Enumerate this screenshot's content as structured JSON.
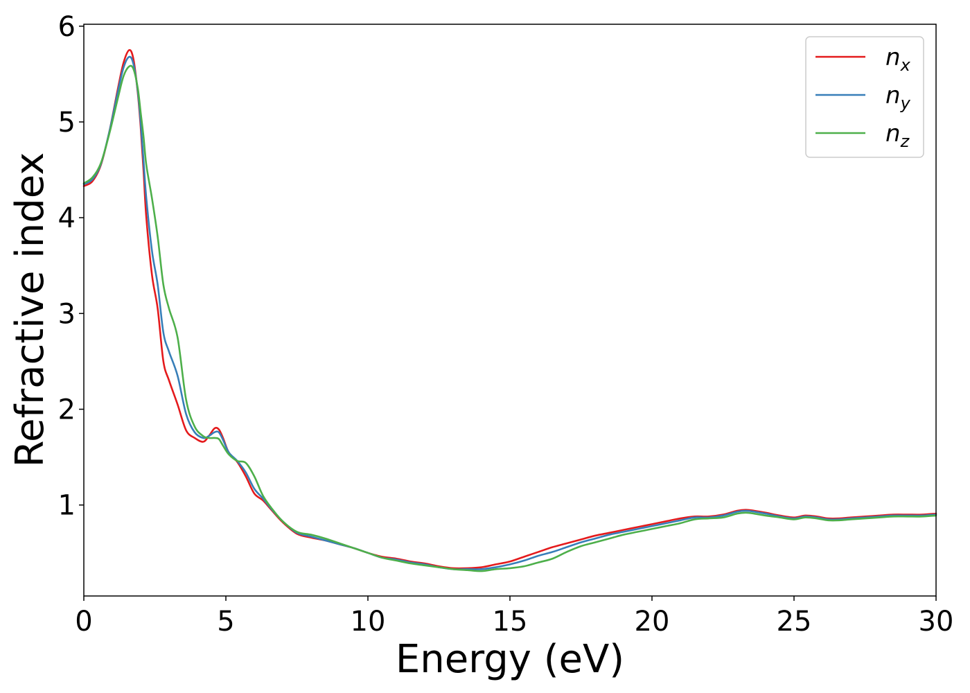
{
  "chart_data": {
    "type": "line",
    "xlabel": "Energy (eV)",
    "ylabel": "Refractive index",
    "xlim": [
      0,
      30
    ],
    "ylim": [
      0.05,
      6.02
    ],
    "xticks": [
      0,
      5,
      10,
      15,
      20,
      25,
      30
    ],
    "yticks": [
      1,
      2,
      3,
      4,
      5,
      6
    ],
    "grid": false,
    "legend_position": "top-right",
    "series": [
      {
        "name": "n",
        "subscript": "x",
        "color": "#e41a1c",
        "x": [
          0,
          0.3,
          0.6,
          0.9,
          1.2,
          1.4,
          1.6,
          1.75,
          1.9,
          2.0,
          2.1,
          2.2,
          2.4,
          2.6,
          2.8,
          3.0,
          3.3,
          3.6,
          3.9,
          4.2,
          4.4,
          4.6,
          4.75,
          4.9,
          5.1,
          5.4,
          5.7,
          6.0,
          6.3,
          6.6,
          7.0,
          7.5,
          8.0,
          8.5,
          9.0,
          9.5,
          10.0,
          10.5,
          11.0,
          11.5,
          12.0,
          12.5,
          13.0,
          13.5,
          14.0,
          14.5,
          15.0,
          15.5,
          16.0,
          16.5,
          17.0,
          17.5,
          18.0,
          18.5,
          19.0,
          19.5,
          20.0,
          20.5,
          21.0,
          21.5,
          22.0,
          22.5,
          23.0,
          23.3,
          23.6,
          24.0,
          24.5,
          25.0,
          25.4,
          25.8,
          26.2,
          26.6,
          27.0,
          27.5,
          28.0,
          28.5,
          29.0,
          29.5,
          30.0
        ],
        "y": [
          4.33,
          4.38,
          4.55,
          4.9,
          5.35,
          5.62,
          5.75,
          5.65,
          5.3,
          4.95,
          4.5,
          4.0,
          3.4,
          3.05,
          2.5,
          2.3,
          2.05,
          1.78,
          1.7,
          1.66,
          1.72,
          1.8,
          1.79,
          1.7,
          1.55,
          1.45,
          1.3,
          1.12,
          1.05,
          0.95,
          0.82,
          0.7,
          0.66,
          0.63,
          0.59,
          0.55,
          0.5,
          0.46,
          0.44,
          0.41,
          0.39,
          0.36,
          0.34,
          0.34,
          0.35,
          0.38,
          0.41,
          0.46,
          0.51,
          0.56,
          0.6,
          0.64,
          0.68,
          0.71,
          0.74,
          0.77,
          0.8,
          0.83,
          0.86,
          0.88,
          0.88,
          0.9,
          0.94,
          0.95,
          0.94,
          0.92,
          0.89,
          0.87,
          0.89,
          0.88,
          0.86,
          0.86,
          0.87,
          0.88,
          0.89,
          0.9,
          0.9,
          0.9,
          0.91
        ]
      },
      {
        "name": "n",
        "subscript": "y",
        "color": "#377eb8",
        "x": [
          0,
          0.3,
          0.6,
          0.9,
          1.2,
          1.4,
          1.6,
          1.75,
          1.9,
          2.0,
          2.1,
          2.2,
          2.4,
          2.6,
          2.8,
          3.0,
          3.3,
          3.6,
          3.9,
          4.2,
          4.4,
          4.6,
          4.75,
          4.9,
          5.1,
          5.4,
          5.7,
          6.0,
          6.3,
          6.6,
          7.0,
          7.5,
          8.0,
          8.5,
          9.0,
          9.5,
          10.0,
          10.5,
          11.0,
          11.5,
          12.0,
          12.5,
          13.0,
          13.5,
          14.0,
          14.5,
          15.0,
          15.5,
          16.0,
          16.5,
          17.0,
          17.5,
          18.0,
          18.5,
          19.0,
          19.5,
          20.0,
          20.5,
          21.0,
          21.5,
          22.0,
          22.5,
          23.0,
          23.3,
          23.6,
          24.0,
          24.5,
          25.0,
          25.4,
          25.8,
          26.2,
          26.6,
          27.0,
          27.5,
          28.0,
          28.5,
          29.0,
          29.5,
          30.0
        ],
        "y": [
          4.35,
          4.4,
          4.56,
          4.9,
          5.32,
          5.57,
          5.68,
          5.6,
          5.32,
          5.0,
          4.6,
          4.2,
          3.65,
          3.3,
          2.8,
          2.6,
          2.35,
          1.95,
          1.76,
          1.7,
          1.72,
          1.76,
          1.76,
          1.68,
          1.55,
          1.46,
          1.34,
          1.17,
          1.07,
          0.96,
          0.83,
          0.71,
          0.67,
          0.63,
          0.59,
          0.55,
          0.5,
          0.45,
          0.43,
          0.4,
          0.38,
          0.35,
          0.33,
          0.33,
          0.33,
          0.35,
          0.38,
          0.42,
          0.47,
          0.51,
          0.56,
          0.61,
          0.65,
          0.69,
          0.72,
          0.75,
          0.78,
          0.81,
          0.84,
          0.87,
          0.87,
          0.89,
          0.93,
          0.94,
          0.93,
          0.91,
          0.88,
          0.86,
          0.88,
          0.87,
          0.85,
          0.85,
          0.86,
          0.87,
          0.88,
          0.89,
          0.89,
          0.89,
          0.9
        ]
      },
      {
        "name": "n",
        "subscript": "z",
        "color": "#4daf4a",
        "x": [
          0,
          0.3,
          0.6,
          0.9,
          1.2,
          1.4,
          1.6,
          1.75,
          1.9,
          2.0,
          2.1,
          2.2,
          2.4,
          2.6,
          2.8,
          3.0,
          3.3,
          3.6,
          3.9,
          4.2,
          4.4,
          4.6,
          4.75,
          4.9,
          5.1,
          5.4,
          5.7,
          6.0,
          6.3,
          6.6,
          7.0,
          7.5,
          8.0,
          8.5,
          9.0,
          9.5,
          10.0,
          10.5,
          11.0,
          11.5,
          12.0,
          12.5,
          13.0,
          13.5,
          14.0,
          14.5,
          15.0,
          15.5,
          16.0,
          16.5,
          17.0,
          17.5,
          18.0,
          18.5,
          19.0,
          19.5,
          20.0,
          20.5,
          21.0,
          21.5,
          22.0,
          22.5,
          23.0,
          23.3,
          23.6,
          24.0,
          24.5,
          25.0,
          25.4,
          25.8,
          26.2,
          26.6,
          27.0,
          27.5,
          28.0,
          28.5,
          29.0,
          29.5,
          30.0
        ],
        "y": [
          4.36,
          4.42,
          4.57,
          4.88,
          5.25,
          5.48,
          5.58,
          5.55,
          5.35,
          5.1,
          4.85,
          4.55,
          4.2,
          3.8,
          3.3,
          3.05,
          2.75,
          2.1,
          1.82,
          1.72,
          1.7,
          1.7,
          1.69,
          1.62,
          1.53,
          1.46,
          1.44,
          1.3,
          1.1,
          0.97,
          0.83,
          0.72,
          0.69,
          0.65,
          0.6,
          0.55,
          0.5,
          0.45,
          0.42,
          0.39,
          0.37,
          0.35,
          0.33,
          0.32,
          0.31,
          0.33,
          0.34,
          0.36,
          0.4,
          0.44,
          0.51,
          0.57,
          0.61,
          0.65,
          0.69,
          0.72,
          0.75,
          0.78,
          0.81,
          0.85,
          0.86,
          0.87,
          0.91,
          0.92,
          0.91,
          0.89,
          0.87,
          0.85,
          0.87,
          0.86,
          0.84,
          0.84,
          0.85,
          0.86,
          0.87,
          0.88,
          0.88,
          0.88,
          0.89
        ]
      }
    ]
  }
}
